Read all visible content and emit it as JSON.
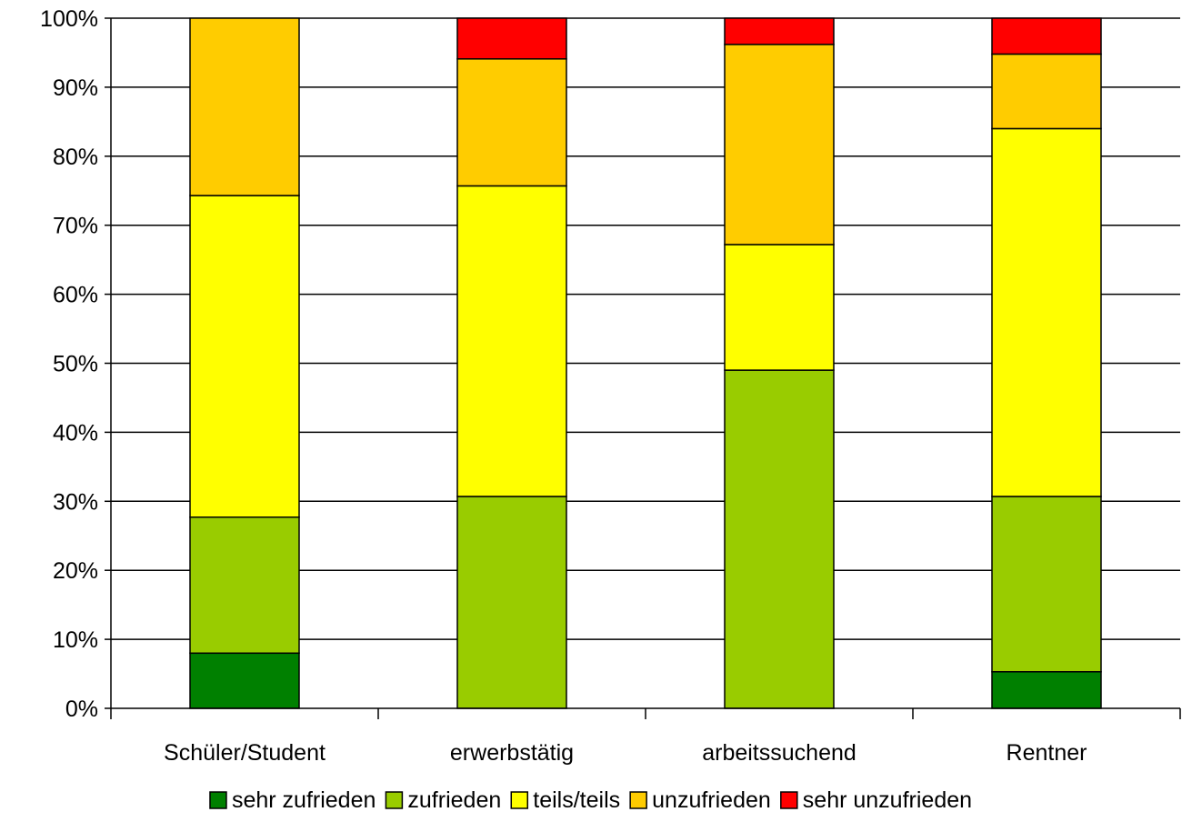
{
  "chart_data": {
    "type": "bar",
    "stacked": true,
    "percent_stacked": true,
    "categories": [
      "Schüler/Student",
      "erwerbstätig",
      "arbeitssuchend",
      "Rentner"
    ],
    "series": [
      {
        "name": "sehr zufrieden",
        "color": "#008000",
        "values": [
          8,
          0,
          0,
          5.3
        ]
      },
      {
        "name": "zufrieden",
        "color": "#99cc00",
        "values": [
          19.7,
          30.7,
          49,
          25.4
        ]
      },
      {
        "name": "teils/teils",
        "color": "#ffff00",
        "values": [
          46.6,
          45,
          18.2,
          53.3
        ]
      },
      {
        "name": "unzufrieden",
        "color": "#ffcc00",
        "values": [
          25.7,
          18.4,
          29,
          10.8
        ]
      },
      {
        "name": "sehr unzufrieden",
        "color": "#ff0000",
        "values": [
          0,
          5.9,
          3.8,
          5.2
        ]
      }
    ],
    "y_ticks": [
      "0%",
      "10%",
      "20%",
      "30%",
      "40%",
      "50%",
      "60%",
      "70%",
      "80%",
      "90%",
      "100%"
    ],
    "ylim": [
      0,
      100
    ],
    "grid": true,
    "legend_position": "bottom"
  }
}
